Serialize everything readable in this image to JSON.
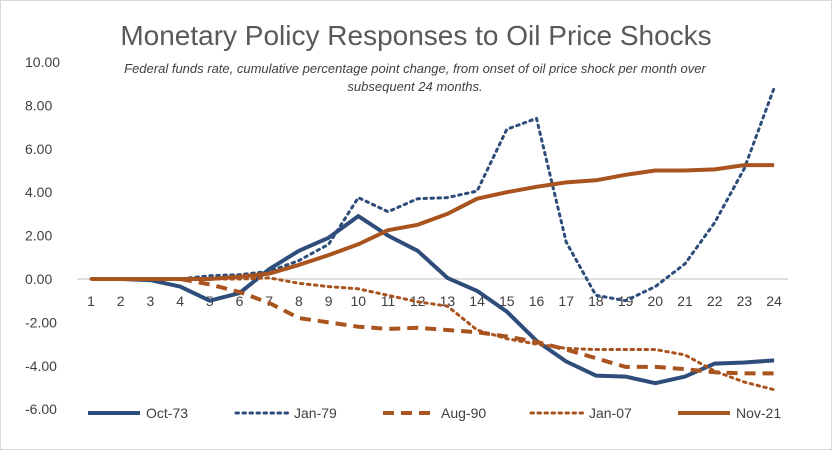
{
  "chart_data": {
    "type": "line",
    "title": "Monetary Policy Responses to Oil Price Shocks",
    "subtitle": "Federal funds rate, cumulative percentage point change, from onset of oil price shock per month over subsequent 24 months.",
    "xlabel": "",
    "ylabel": "",
    "x": [
      1,
      2,
      3,
      4,
      5,
      6,
      7,
      8,
      9,
      10,
      11,
      12,
      13,
      14,
      15,
      16,
      17,
      18,
      19,
      20,
      21,
      22,
      23,
      24
    ],
    "y_ticks": [
      "10.00",
      "8.00",
      "6.00",
      "4.00",
      "2.00",
      "0.00",
      "-2.00",
      "-4.00",
      "-6.00"
    ],
    "ylim": [
      -6,
      10
    ],
    "legend_position": "bottom",
    "series": [
      {
        "name": "Oct-73",
        "style": "solid",
        "color": "#2e4d7b",
        "width": 4,
        "values": [
          0,
          0,
          -0.05,
          -0.35,
          -1.0,
          -0.65,
          0.45,
          1.3,
          1.9,
          2.9,
          2.0,
          1.3,
          0.05,
          -0.55,
          -1.5,
          -2.85,
          -3.8,
          -4.45,
          -4.5,
          -4.8,
          -4.5,
          -3.9,
          -3.85,
          -3.75
        ]
      },
      {
        "name": "Jan-79",
        "style": "dotted",
        "color": "#2e4d7b",
        "width": 3,
        "values": [
          0,
          0,
          0,
          0,
          0.15,
          0.2,
          0.35,
          0.85,
          1.6,
          3.75,
          3.1,
          3.7,
          3.75,
          4.05,
          6.9,
          7.4,
          1.7,
          -0.75,
          -1.0,
          -0.35,
          0.7,
          2.6,
          5.1,
          8.8
        ]
      },
      {
        "name": "Aug-90",
        "style": "dashed",
        "color": "#a9541f",
        "width": 4,
        "values": [
          0,
          0,
          0,
          0,
          -0.25,
          -0.6,
          -1.1,
          -1.8,
          -2.0,
          -2.2,
          -2.3,
          -2.25,
          -2.35,
          -2.45,
          -2.65,
          -2.9,
          -3.25,
          -3.65,
          -4.05,
          -4.05,
          -4.15,
          -4.3,
          -4.35,
          -4.35
        ]
      },
      {
        "name": "Jan-07",
        "style": "dotted",
        "color": "#a9541f",
        "width": 3,
        "values": [
          0,
          0,
          0,
          0,
          0,
          0,
          0.05,
          -0.2,
          -0.35,
          -0.45,
          -0.75,
          -1.05,
          -1.25,
          -2.35,
          -2.75,
          -3.0,
          -3.2,
          -3.25,
          -3.25,
          -3.25,
          -3.5,
          -4.25,
          -4.75,
          -5.1
        ]
      },
      {
        "name": "Nov-21",
        "style": "solid",
        "color": "#a9541f",
        "width": 4,
        "values": [
          0,
          0,
          0,
          0,
          0,
          0.1,
          0.25,
          0.65,
          1.1,
          1.6,
          2.25,
          2.5,
          3.0,
          3.7,
          4.0,
          4.25,
          4.45,
          4.55,
          4.8,
          5.0,
          5.0,
          5.05,
          5.25,
          5.25
        ]
      }
    ]
  }
}
